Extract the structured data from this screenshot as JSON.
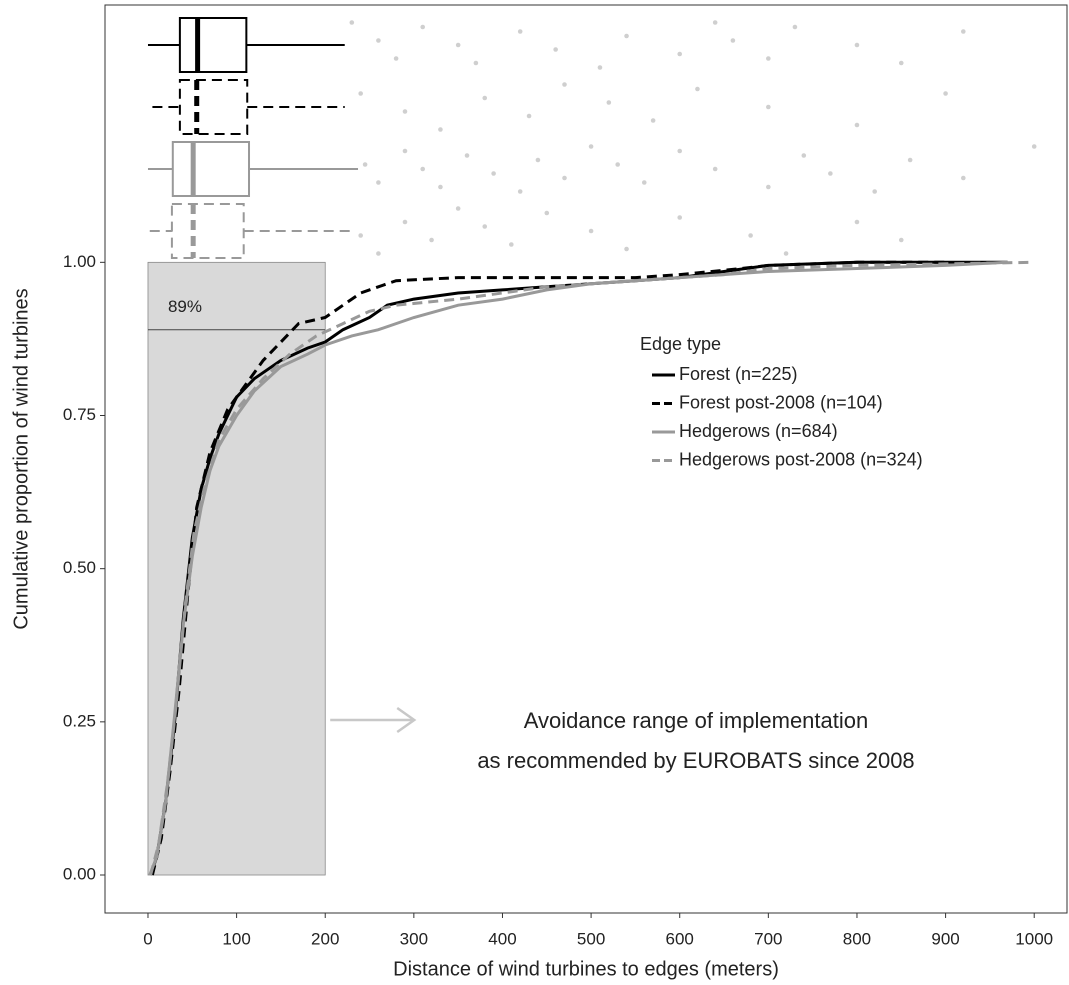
{
  "chart_data": {
    "type": "ecdf",
    "x_label": "Distance of wind turbines to edges (meters)",
    "y_label": "Cumulative proportion of wind turbines",
    "xlim": [
      -48.5,
      1037
    ],
    "ylim": [
      -0.062,
      1.42
    ],
    "xticks": [
      0,
      100,
      200,
      300,
      400,
      500,
      600,
      700,
      800,
      900,
      1000
    ],
    "yticks": [
      {
        "value": 0,
        "label": "0.00"
      },
      {
        "value": 0.25,
        "label": "0.25"
      },
      {
        "value": 0.5,
        "label": "0.50"
      },
      {
        "value": 0.75,
        "label": "0.75"
      },
      {
        "value": 1,
        "label": "1.00"
      }
    ],
    "legend_title": "Edge type",
    "legend_position": "right",
    "shaded_region": {
      "xlim": [
        0,
        200
      ],
      "ylim": [
        0,
        1
      ],
      "color": "#d9d9d9"
    },
    "reference_line": {
      "value": 0.89,
      "label": "89%"
    },
    "annotations": [
      "Avoidance range of implementation",
      "as recommended by EUROBATS since 2008"
    ],
    "series": [
      {
        "name": "Forest (n=225)",
        "color": "#000000",
        "dash": "solid",
        "x": [
          3,
          10,
          20,
          30,
          40,
          50,
          60,
          70,
          80,
          90,
          100,
          120,
          150,
          180,
          200,
          220,
          250,
          270,
          300,
          350,
          400,
          450,
          500,
          550,
          600,
          650,
          700,
          800,
          970
        ],
        "values": [
          0,
          0.03,
          0.12,
          0.25,
          0.42,
          0.55,
          0.63,
          0.68,
          0.72,
          0.75,
          0.78,
          0.81,
          0.84,
          0.86,
          0.87,
          0.89,
          0.91,
          0.93,
          0.94,
          0.95,
          0.955,
          0.96,
          0.965,
          0.97,
          0.975,
          0.985,
          0.995,
          1.0,
          1.0
        ],
        "box": {
          "whisker_low": 0,
          "q1": 36,
          "median": 56,
          "q3": 111,
          "whisker_high": 222
        },
        "outliers": [
          230,
          260,
          280,
          310,
          350,
          370,
          420,
          460,
          510,
          540,
          600,
          640,
          660,
          700,
          730,
          800,
          850,
          920
        ]
      },
      {
        "name": "Forest post-2008 (n=104)",
        "color": "#000000",
        "dash": "dashed",
        "x": [
          5,
          15,
          25,
          35,
          45,
          55,
          70,
          90,
          110,
          130,
          150,
          170,
          200,
          220,
          240,
          260,
          280,
          350,
          450,
          550,
          600,
          670,
          700,
          800,
          900
        ],
        "values": [
          0,
          0.06,
          0.17,
          0.3,
          0.46,
          0.6,
          0.69,
          0.76,
          0.8,
          0.84,
          0.87,
          0.9,
          0.91,
          0.93,
          0.95,
          0.96,
          0.97,
          0.975,
          0.975,
          0.975,
          0.98,
          0.99,
          0.995,
          1.0,
          1.0
        ],
        "box": {
          "whisker_low": 5,
          "q1": 36,
          "median": 55,
          "q3": 112,
          "whisker_high": 222
        },
        "outliers": [
          240,
          290,
          330,
          380,
          430,
          470,
          520,
          570,
          620,
          700,
          800,
          900
        ]
      },
      {
        "name": "Hedgerows (n=684)",
        "color": "#999999",
        "dash": "solid",
        "x": [
          2,
          10,
          20,
          30,
          40,
          50,
          60,
          70,
          80,
          100,
          120,
          150,
          180,
          200,
          230,
          260,
          300,
          350,
          400,
          450,
          500,
          600,
          700,
          800,
          900,
          970
        ],
        "values": [
          0,
          0.03,
          0.12,
          0.26,
          0.41,
          0.52,
          0.6,
          0.66,
          0.7,
          0.75,
          0.79,
          0.83,
          0.85,
          0.865,
          0.88,
          0.89,
          0.91,
          0.93,
          0.94,
          0.955,
          0.965,
          0.975,
          0.985,
          0.99,
          0.995,
          1.0
        ],
        "box": {
          "whisker_low": 0,
          "q1": 28,
          "median": 51,
          "q3": 114,
          "whisker_high": 237
        },
        "outliers": [
          245,
          260,
          290,
          310,
          330,
          360,
          390,
          420,
          440,
          470,
          500,
          530,
          560,
          600,
          640,
          700,
          740,
          770,
          820,
          860,
          920,
          1000
        ]
      },
      {
        "name": "Hedgerows post-2008 (n=324)",
        "color": "#999999",
        "dash": "dashed",
        "x": [
          3,
          12,
          22,
          32,
          42,
          52,
          65,
          80,
          100,
          130,
          160,
          190,
          220,
          250,
          280,
          350,
          450,
          550,
          650,
          700,
          800,
          1000
        ],
        "values": [
          0,
          0.05,
          0.15,
          0.28,
          0.44,
          0.56,
          0.64,
          0.71,
          0.76,
          0.81,
          0.85,
          0.88,
          0.9,
          0.92,
          0.93,
          0.94,
          0.96,
          0.97,
          0.98,
          0.99,
          0.995,
          1.0
        ],
        "box": {
          "whisker_low": 2,
          "q1": 27,
          "median": 51,
          "q3": 108,
          "whisker_high": 228
        },
        "outliers": [
          240,
          260,
          290,
          320,
          350,
          380,
          410,
          450,
          500,
          540,
          600,
          680,
          720,
          800,
          850
        ]
      }
    ]
  }
}
